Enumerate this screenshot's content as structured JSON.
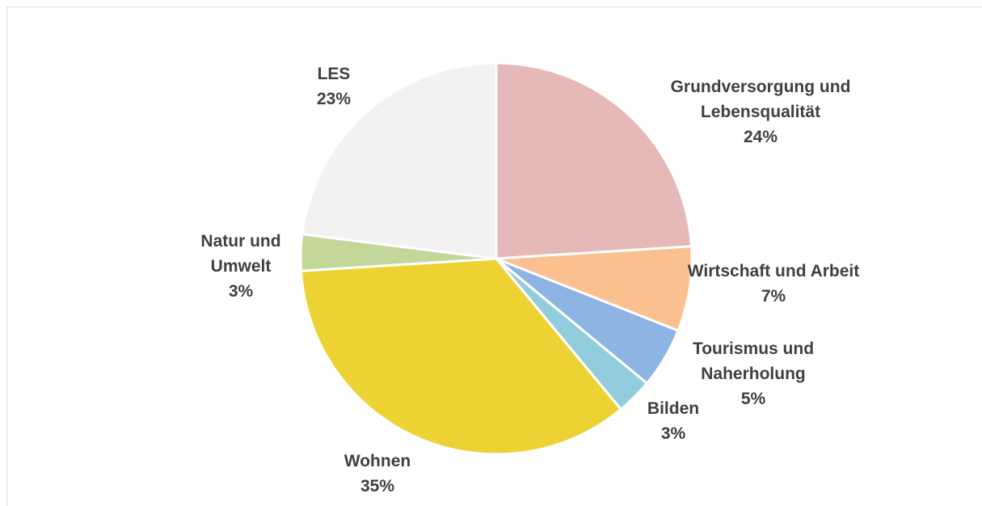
{
  "chart_data": {
    "type": "pie",
    "categories": [
      "Grundversorgung und Lebensqualität",
      "Wirtschaft und Arbeit",
      "Tourismus und Naherholung",
      "Bilden",
      "Wohnen",
      "Natur und Umwelt",
      "LES"
    ],
    "values": [
      24,
      7,
      5,
      3,
      35,
      3,
      23
    ],
    "value_labels": [
      "24%",
      "7%",
      "5%",
      "3%",
      "35%",
      "3%",
      "23%"
    ],
    "colors": [
      "#e6b8b7",
      "#fac090",
      "#8eb4e3",
      "#93cddd",
      "#ecd232",
      "#c4d79b",
      "#f2f2f2"
    ]
  }
}
